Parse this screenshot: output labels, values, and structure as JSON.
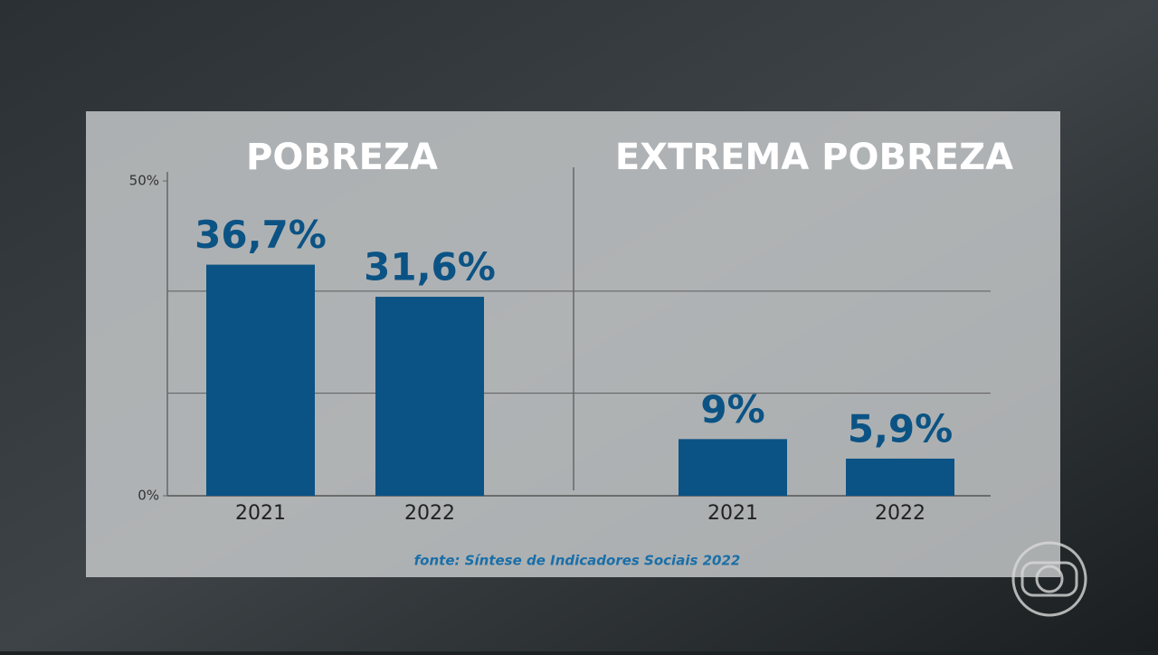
{
  "chart_data": [
    {
      "type": "bar",
      "title": "POBREZA",
      "categories": [
        "2021",
        "2022"
      ],
      "values": [
        36.7,
        31.6
      ],
      "value_labels": [
        "36,7%",
        "31,6%"
      ],
      "color": "#0b5384",
      "ylim": [
        0,
        50
      ],
      "yticks": [
        {
          "value": 0,
          "label": "0%"
        },
        {
          "value": 50,
          "label": "50%"
        }
      ],
      "gridlines": [
        16.3,
        32.5
      ]
    },
    {
      "type": "bar",
      "title": "EXTREMA POBREZA",
      "categories": [
        "2021",
        "2022"
      ],
      "values": [
        9,
        5.9
      ],
      "value_labels": [
        "9%",
        "5,9%"
      ],
      "color": "#0b5384",
      "ylim": [
        0,
        50
      ],
      "gridlines": [
        16.3,
        32.5
      ]
    }
  ],
  "source": "fonte: Síntese de Indicadores Sociais 2022"
}
